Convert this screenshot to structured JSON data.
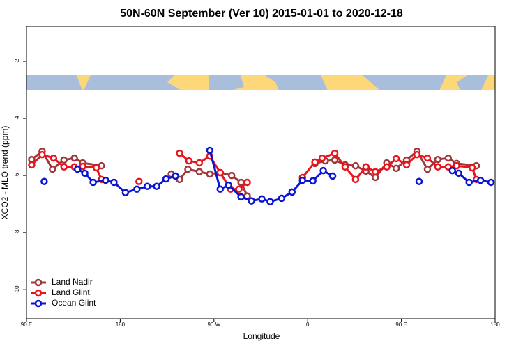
{
  "chart_data": {
    "type": "line",
    "title": "50N-60N September (Ver 10)   2015-01-01 to 2020-12-18",
    "x_label": "Longitude",
    "y_label": "XCO2 - MLO trend (ppm)",
    "xlim": [
      90,
      540
    ],
    "xticks": [
      {
        "value": 90,
        "label": "90 E"
      },
      180,
      {
        "value": 270,
        "label": "90 W"
      },
      {
        "value": 360,
        "label": "0"
      },
      {
        "value": 450,
        "label": "90 E"
      },
      {
        "value": 540,
        "label": "180"
      }
    ],
    "ylim": [
      -11.02,
      -0.78
    ],
    "yticks": [
      -2,
      -4,
      -6,
      -8,
      -10
    ],
    "legend": "bottom left",
    "series": [
      {
        "name": "Land Nadir",
        "color": "#a0373a",
        "x": [
          95,
          105,
          115,
          126,
          136,
          144,
          162,
          195,
          229,
          237,
          245,
          256,
          266,
          276,
          287,
          296,
          302,
          335,
          367,
          377,
          386,
          396,
          406,
          416,
          425,
          436,
          445,
          455,
          465,
          475,
          485,
          495,
          503,
          522
        ],
        "values": [
          -5.44,
          -5.15,
          -5.78,
          -5.46,
          -5.39,
          -5.56,
          -5.66,
          null,
          -5.95,
          -6.14,
          -5.78,
          -5.87,
          -5.95,
          -5.9,
          -6.0,
          -6.24,
          -6.72,
          null,
          -5.58,
          -5.49,
          -5.46,
          -5.63,
          -5.66,
          -5.85,
          -6.07,
          -5.56,
          -5.75,
          -5.46,
          -5.15,
          -5.78,
          -5.44,
          -5.39,
          -5.58,
          -5.66
        ]
      },
      {
        "name": "Land Glint",
        "color": "#e8141e",
        "x": [
          95,
          105,
          116,
          126,
          136,
          144,
          157,
          162,
          180,
          198,
          217,
          237,
          246,
          256,
          266,
          276,
          286,
          294,
          302,
          329,
          355,
          367,
          374,
          386,
          396,
          406,
          416,
          425,
          436,
          445,
          455,
          465,
          475,
          485,
          495,
          503,
          518,
          522
        ],
        "values": [
          -5.63,
          -5.27,
          -5.39,
          -5.7,
          -5.7,
          -5.68,
          -5.73,
          -6.14,
          null,
          -6.21,
          null,
          -5.22,
          -5.49,
          -5.56,
          -5.32,
          -5.9,
          -6.48,
          -6.48,
          -6.24,
          null,
          -6.07,
          -5.53,
          -5.39,
          -5.22,
          -5.7,
          -6.14,
          -5.7,
          -5.87,
          -5.7,
          -5.41,
          -5.63,
          -5.27,
          -5.39,
          -5.7,
          -5.7,
          -5.66,
          -5.73,
          -6.14
        ]
      },
      {
        "name": "Ocean Glint",
        "color": "#0a14d4",
        "x": [
          107,
          123,
          139,
          146,
          154,
          166,
          174,
          185,
          196,
          206,
          215,
          224,
          233,
          249,
          266,
          276,
          284,
          296,
          306,
          316,
          324,
          335,
          345,
          355,
          365,
          375,
          384,
          425,
          467,
          483,
          499,
          505,
          515,
          526,
          536
        ],
        "values": [
          -6.21,
          null,
          -5.78,
          -5.92,
          -6.24,
          -6.17,
          -6.24,
          -6.6,
          -6.48,
          -6.38,
          -6.38,
          -6.12,
          -6.02,
          null,
          -5.12,
          -6.48,
          -6.34,
          -6.75,
          -6.89,
          -6.82,
          -6.92,
          -6.8,
          -6.58,
          -6.17,
          -6.19,
          -5.83,
          -6.02,
          null,
          -6.21,
          null,
          -5.83,
          -5.92,
          -6.24,
          -6.17,
          -6.24
        ]
      }
    ]
  }
}
